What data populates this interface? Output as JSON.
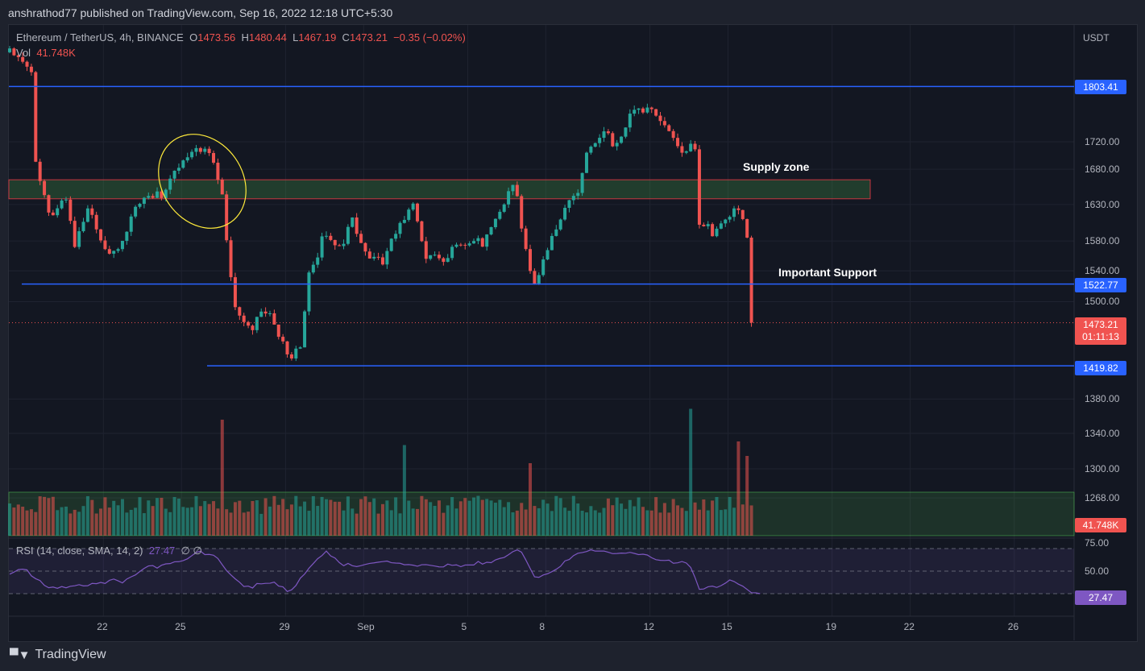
{
  "header": {
    "published": "anshrathod77 published on TradingView.com, Sep 16, 2022 12:18 UTC+5:30"
  },
  "legend": {
    "symbol": "Ethereum / TetherUS, 4h, BINANCE",
    "o_label": "O",
    "o": "1473.56",
    "h_label": "H",
    "h": "1480.44",
    "l_label": "L",
    "l": "1467.19",
    "c_label": "C",
    "c": "1473.21",
    "change": "−0.35 (−0.02%)",
    "vol_label": "Vol",
    "vol": "41.748K"
  },
  "rsi": {
    "label": "RSI (14, close, SMA, 14, 2)",
    "value": "27.47",
    "extra": "∅ ∅",
    "ticks": [
      "75.00",
      "50.00"
    ],
    "current": "27.47"
  },
  "axis": {
    "currency": "USDT",
    "price_ticks": [
      "1720.00",
      "1680.00",
      "1630.00",
      "1580.00",
      "1540.00",
      "1500.00",
      "1380.00",
      "1340.00",
      "1300.00",
      "1268.00"
    ],
    "time_ticks": [
      "22",
      "25",
      "29",
      "Sep",
      "5",
      "8",
      "12",
      "15",
      "19",
      "22",
      "26"
    ]
  },
  "levels": [
    {
      "name": "resistance",
      "value": "1803.41"
    },
    {
      "name": "support",
      "value": "1522.77"
    },
    {
      "name": "low",
      "value": "1419.82"
    }
  ],
  "current": {
    "price": "1473.21",
    "countdown": "01:11:13",
    "volume": "41.748K"
  },
  "annotations": {
    "supply": "Supply zone",
    "support": "Important Support"
  },
  "footer": {
    "logo": "TradingView"
  },
  "colors": {
    "up": "#26a69a",
    "down": "#ef5350",
    "level": "#2962ff",
    "rsi": "#7e57c2"
  },
  "chart_data": {
    "type": "candlestick",
    "scale": "log",
    "timeframe": "4h",
    "x_unit": "day of Aug (Sep 1 = day 32)",
    "price_keypoints": [
      [
        18.4,
        1857
      ],
      [
        19.3,
        1816
      ],
      [
        19.4,
        1695
      ],
      [
        20.0,
        1610
      ],
      [
        20.5,
        1650
      ],
      [
        20.9,
        1569
      ],
      [
        21.4,
        1622
      ],
      [
        22.2,
        1569
      ],
      [
        22.7,
        1580
      ],
      [
        23.2,
        1622
      ],
      [
        24.3,
        1646
      ],
      [
        24.7,
        1686
      ],
      [
        25.5,
        1709
      ],
      [
        26.1,
        1698
      ],
      [
        26.6,
        1634
      ],
      [
        27.0,
        1500
      ],
      [
        27.7,
        1470
      ],
      [
        28.3,
        1485
      ],
      [
        29.1,
        1428
      ],
      [
        29.6,
        1452
      ],
      [
        29.9,
        1543
      ],
      [
        30.5,
        1586
      ],
      [
        31.2,
        1565
      ],
      [
        31.5,
        1610
      ],
      [
        32.1,
        1565
      ],
      [
        32.8,
        1555
      ],
      [
        33.4,
        1597
      ],
      [
        33.9,
        1622
      ],
      [
        34.4,
        1565
      ],
      [
        35.1,
        1560
      ],
      [
        35.9,
        1570
      ],
      [
        36.6,
        1580
      ],
      [
        37.2,
        1622
      ],
      [
        37.8,
        1668
      ],
      [
        38.1,
        1580
      ],
      [
        38.6,
        1511
      ],
      [
        39.1,
        1580
      ],
      [
        39.7,
        1628
      ],
      [
        40.3,
        1655
      ],
      [
        40.6,
        1706
      ],
      [
        41.2,
        1727
      ],
      [
        41.8,
        1720
      ],
      [
        42.3,
        1775
      ],
      [
        43.1,
        1763
      ],
      [
        43.7,
        1727
      ],
      [
        44.3,
        1709
      ],
      [
        44.7,
        1733
      ],
      [
        44.9,
        1610
      ],
      [
        45.4,
        1586
      ],
      [
        46.2,
        1616
      ],
      [
        46.7,
        1610
      ],
      [
        46.9,
        1486
      ],
      [
        47.3,
        1473.21
      ]
    ],
    "volume_spikes_k": [
      [
        26.6,
        160
      ],
      [
        44.6,
        175
      ],
      [
        46.4,
        130
      ],
      [
        46.8,
        110
      ],
      [
        33.6,
        125
      ],
      [
        38.4,
        100
      ]
    ],
    "rsi_keypoints": [
      [
        18.4,
        45
      ],
      [
        19.0,
        52
      ],
      [
        19.8,
        35
      ],
      [
        20.5,
        31
      ],
      [
        21.5,
        34
      ],
      [
        22.4,
        42
      ],
      [
        22.8,
        37
      ],
      [
        23.6,
        52
      ],
      [
        24.3,
        58
      ],
      [
        25.1,
        64
      ],
      [
        25.7,
        70
      ],
      [
        26.4,
        63
      ],
      [
        27.4,
        33
      ],
      [
        28.5,
        36
      ],
      [
        29.2,
        28
      ],
      [
        29.5,
        40
      ],
      [
        30.0,
        60
      ],
      [
        30.6,
        70
      ],
      [
        31.2,
        55
      ],
      [
        32.5,
        62
      ],
      [
        33.5,
        55
      ],
      [
        34.5,
        58
      ],
      [
        36.0,
        54
      ],
      [
        37.5,
        68
      ],
      [
        38.0,
        72
      ],
      [
        38.6,
        40
      ],
      [
        39.3,
        52
      ],
      [
        40.0,
        68
      ],
      [
        41.0,
        72
      ],
      [
        42.5,
        72
      ],
      [
        43.3,
        60
      ],
      [
        44.5,
        62
      ],
      [
        44.9,
        32
      ],
      [
        45.6,
        30
      ],
      [
        46.0,
        38
      ],
      [
        46.6,
        35
      ],
      [
        46.9,
        28
      ],
      [
        47.3,
        27.47
      ]
    ],
    "levels": [
      1803.41,
      1522.77,
      1419.82
    ],
    "supply_zone": [
      1638,
      1665
    ]
  }
}
